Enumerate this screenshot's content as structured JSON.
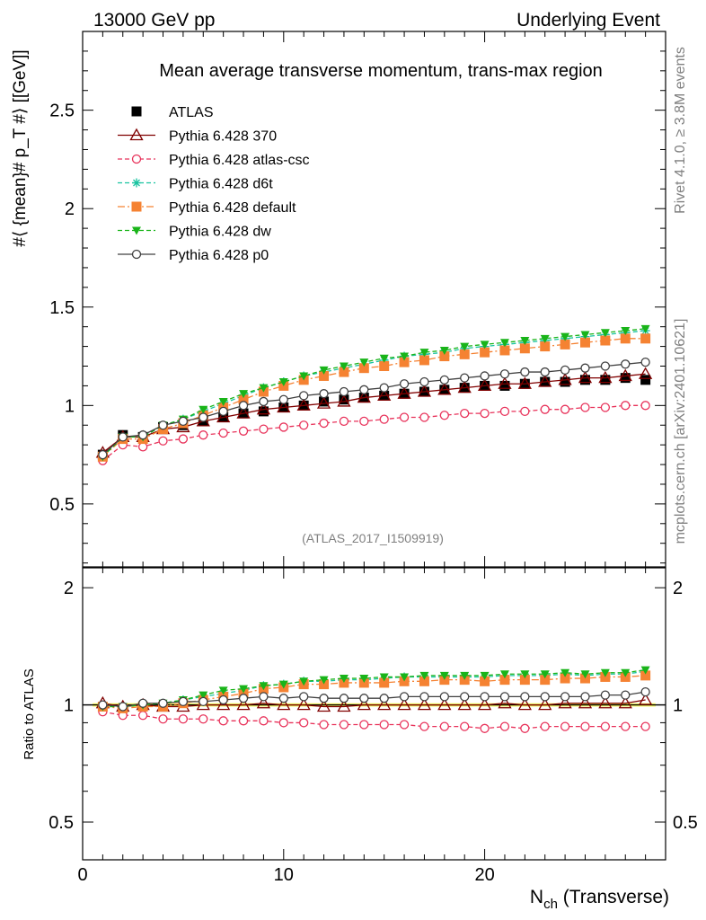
{
  "header": {
    "left": "13000 GeV pp",
    "right": "Underlying Event"
  },
  "side_labels": {
    "rivet": "Rivet 4.1.0, ≥ 3.8M events",
    "mcplots": "mcplots.cern.ch [arXiv:2401.10621]"
  },
  "chart_data": [
    {
      "type": "line",
      "title": "Mean average transverse momentum, trans-max region",
      "ylabel": "#⟨ {mean}# p_T #⟩ [[GeV]]",
      "xlabel": "",
      "watermark": "(ATLAS_2017_I1509919)",
      "xlim": [
        0,
        29
      ],
      "ylim": [
        0.18,
        2.9
      ],
      "yticks": [
        0.5,
        1,
        1.5,
        2,
        2.5
      ],
      "ytick_labels": [
        "0.5",
        "1",
        "1.5",
        "2",
        "2.5"
      ],
      "x": [
        1,
        2,
        3,
        4,
        5,
        6,
        7,
        8,
        9,
        10,
        11,
        12,
        13,
        14,
        15,
        16,
        17,
        18,
        19,
        20,
        21,
        22,
        23,
        24,
        25,
        26,
        27,
        28
      ],
      "series": [
        {
          "name": "ATLAS",
          "color": "#000000",
          "marker": "square-filled",
          "line": "none",
          "values": [
            0.75,
            0.85,
            0.84,
            0.89,
            0.9,
            0.92,
            0.94,
            0.96,
            0.97,
            0.99,
            1.0,
            1.02,
            1.03,
            1.04,
            1.05,
            1.06,
            1.07,
            1.08,
            1.09,
            1.1,
            1.1,
            1.11,
            1.12,
            1.12,
            1.13,
            1.13,
            1.14,
            1.13
          ]
        },
        {
          "name": "Pythia 6.428 370",
          "color": "#800000",
          "marker": "triangle-open",
          "line": "solid",
          "values": [
            0.76,
            0.84,
            0.84,
            0.88,
            0.89,
            0.92,
            0.94,
            0.96,
            0.98,
            0.99,
            1.0,
            1.01,
            1.02,
            1.04,
            1.05,
            1.06,
            1.07,
            1.08,
            1.09,
            1.1,
            1.11,
            1.11,
            1.12,
            1.13,
            1.14,
            1.14,
            1.15,
            1.16
          ]
        },
        {
          "name": "Pythia 6.428 atlas-csc",
          "color": "#e8325a",
          "marker": "circle-open",
          "line": "dashed",
          "values": [
            0.72,
            0.8,
            0.79,
            0.82,
            0.83,
            0.85,
            0.86,
            0.87,
            0.88,
            0.89,
            0.9,
            0.91,
            0.92,
            0.92,
            0.93,
            0.94,
            0.94,
            0.95,
            0.96,
            0.96,
            0.97,
            0.97,
            0.98,
            0.98,
            0.99,
            0.99,
            1.0,
            1.0
          ]
        },
        {
          "name": "Pythia 6.428 d6t",
          "color": "#19c3a0",
          "marker": "star",
          "line": "dashed",
          "values": [
            0.74,
            0.84,
            0.84,
            0.9,
            0.93,
            0.97,
            1.01,
            1.05,
            1.09,
            1.12,
            1.15,
            1.17,
            1.19,
            1.21,
            1.23,
            1.25,
            1.26,
            1.27,
            1.29,
            1.3,
            1.31,
            1.32,
            1.33,
            1.34,
            1.35,
            1.36,
            1.37,
            1.38
          ]
        },
        {
          "name": "Pythia 6.428 default",
          "color": "#f58232",
          "marker": "square-filled",
          "line": "dashdot",
          "values": [
            0.74,
            0.83,
            0.83,
            0.88,
            0.91,
            0.95,
            0.99,
            1.03,
            1.07,
            1.1,
            1.13,
            1.15,
            1.17,
            1.19,
            1.2,
            1.22,
            1.23,
            1.25,
            1.26,
            1.27,
            1.28,
            1.29,
            1.3,
            1.31,
            1.32,
            1.33,
            1.34,
            1.34
          ]
        },
        {
          "name": "Pythia 6.428 dw",
          "color": "#19b419",
          "marker": "triangle-down-filled",
          "line": "dashed",
          "values": [
            0.74,
            0.84,
            0.84,
            0.9,
            0.93,
            0.98,
            1.02,
            1.06,
            1.09,
            1.12,
            1.15,
            1.18,
            1.2,
            1.22,
            1.24,
            1.25,
            1.27,
            1.28,
            1.3,
            1.31,
            1.32,
            1.33,
            1.34,
            1.35,
            1.36,
            1.37,
            1.38,
            1.39
          ]
        },
        {
          "name": "Pythia 6.428 p0",
          "color": "#404040",
          "marker": "circle-open",
          "line": "solid",
          "values": [
            0.75,
            0.84,
            0.85,
            0.9,
            0.92,
            0.94,
            0.97,
            1.0,
            1.02,
            1.03,
            1.05,
            1.06,
            1.07,
            1.08,
            1.09,
            1.11,
            1.12,
            1.13,
            1.14,
            1.15,
            1.16,
            1.17,
            1.17,
            1.18,
            1.19,
            1.2,
            1.21,
            1.22
          ]
        }
      ]
    },
    {
      "type": "line",
      "title": "",
      "ylabel": "Ratio to ATLAS",
      "xlabel": "N_ch (Transverse)",
      "xlim": [
        0,
        29
      ],
      "ylim": [
        0.4,
        2.25
      ],
      "yticks": [
        0.5,
        1,
        2
      ],
      "ytick_labels": [
        "0.5",
        "1",
        "2"
      ],
      "xticks": [
        0,
        10,
        20
      ],
      "xtick_labels": [
        "0",
        "10",
        "20"
      ],
      "band": {
        "color": "#ffff66",
        "lower": 0.99,
        "upper": 1.01
      },
      "reference": 1.0,
      "x": [
        1,
        2,
        3,
        4,
        5,
        6,
        7,
        8,
        9,
        10,
        11,
        12,
        13,
        14,
        15,
        16,
        17,
        18,
        19,
        20,
        21,
        22,
        23,
        24,
        25,
        26,
        27,
        28
      ],
      "series": [
        {
          "name": "Pythia 6.428 370",
          "values": [
            1.01,
            0.99,
            1.0,
            0.99,
            0.99,
            1.0,
            1.0,
            1.0,
            1.01,
            1.0,
            1.0,
            0.99,
            0.99,
            1.0,
            1.0,
            1.0,
            1.0,
            1.0,
            1.0,
            1.0,
            1.01,
            1.0,
            1.0,
            1.01,
            1.01,
            1.01,
            1.01,
            1.03
          ]
        },
        {
          "name": "Pythia 6.428 atlas-csc",
          "values": [
            0.96,
            0.94,
            0.94,
            0.92,
            0.92,
            0.92,
            0.91,
            0.91,
            0.91,
            0.9,
            0.9,
            0.89,
            0.89,
            0.89,
            0.89,
            0.89,
            0.88,
            0.88,
            0.88,
            0.87,
            0.88,
            0.87,
            0.88,
            0.88,
            0.88,
            0.88,
            0.88,
            0.88
          ]
        },
        {
          "name": "Pythia 6.428 d6t",
          "values": [
            0.99,
            0.99,
            1.0,
            1.01,
            1.03,
            1.05,
            1.07,
            1.09,
            1.12,
            1.13,
            1.15,
            1.15,
            1.16,
            1.16,
            1.17,
            1.18,
            1.18,
            1.18,
            1.18,
            1.18,
            1.19,
            1.19,
            1.19,
            1.2,
            1.19,
            1.2,
            1.2,
            1.22
          ]
        },
        {
          "name": "Pythia 6.428 default",
          "values": [
            0.99,
            0.98,
            0.99,
            0.99,
            1.01,
            1.03,
            1.05,
            1.07,
            1.1,
            1.11,
            1.13,
            1.13,
            1.14,
            1.14,
            1.14,
            1.15,
            1.15,
            1.16,
            1.16,
            1.15,
            1.16,
            1.16,
            1.16,
            1.17,
            1.17,
            1.18,
            1.18,
            1.19
          ]
        },
        {
          "name": "Pythia 6.428 dw",
          "values": [
            0.99,
            0.99,
            1.0,
            1.01,
            1.03,
            1.06,
            1.09,
            1.1,
            1.12,
            1.13,
            1.15,
            1.16,
            1.17,
            1.17,
            1.18,
            1.18,
            1.19,
            1.19,
            1.19,
            1.19,
            1.2,
            1.2,
            1.2,
            1.21,
            1.2,
            1.21,
            1.21,
            1.23
          ]
        },
        {
          "name": "Pythia 6.428 p0",
          "values": [
            1.0,
            0.99,
            1.01,
            1.01,
            1.02,
            1.02,
            1.03,
            1.04,
            1.05,
            1.04,
            1.05,
            1.04,
            1.04,
            1.04,
            1.04,
            1.05,
            1.05,
            1.05,
            1.05,
            1.05,
            1.05,
            1.05,
            1.05,
            1.05,
            1.05,
            1.06,
            1.06,
            1.08
          ]
        }
      ]
    }
  ]
}
